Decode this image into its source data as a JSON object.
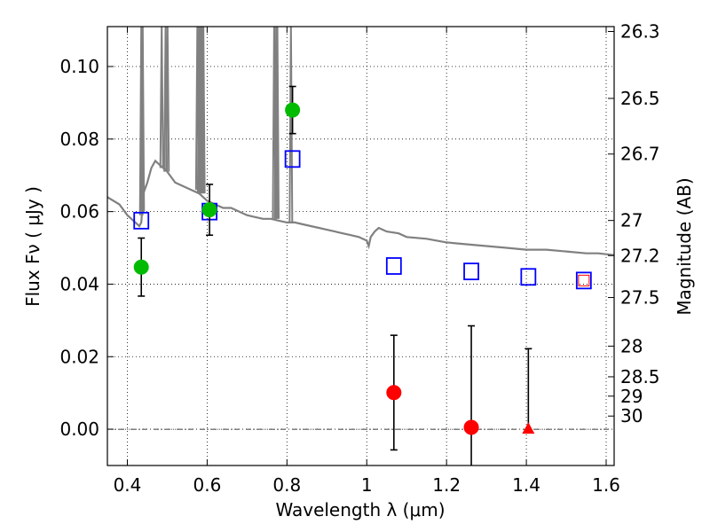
{
  "chart_data": {
    "type": "scatter",
    "xlabel": "Wavelength  λ (μm)",
    "ylabel": "Flux  Fν ( μJy )",
    "ylabel_right": "Magnitude (AB)",
    "xlim": [
      0.35,
      1.62
    ],
    "ylim": [
      -0.01,
      0.111
    ],
    "x_ticks": [
      "0.4",
      "0.6",
      "0.8",
      "1",
      "1.2",
      "1.4",
      "1.6"
    ],
    "y_ticks": [
      "0.00",
      "0.02",
      "0.04",
      "0.06",
      "0.08",
      "0.10"
    ],
    "right_ticks": [
      {
        "label": "26.3",
        "mag": 26.3
      },
      {
        "label": "26.5",
        "mag": 26.5
      },
      {
        "label": "26.7",
        "mag": 26.7
      },
      {
        "label": "27",
        "mag": 27.0
      },
      {
        "label": "27.2",
        "mag": 27.2
      },
      {
        "label": "27.5",
        "mag": 27.5
      },
      {
        "label": "28",
        "mag": 28.0
      },
      {
        "label": "28.5",
        "mag": 28.5
      },
      {
        "label": "29",
        "mag": 29.0
      },
      {
        "label": "30",
        "mag": 30.0
      }
    ],
    "grid": "dotted",
    "series": [
      {
        "kind": "model-spectrum",
        "color": "#808080",
        "points": [
          [
            0.35,
            0.064
          ],
          [
            0.38,
            0.062
          ],
          [
            0.4,
            0.059
          ],
          [
            0.42,
            0.057
          ],
          [
            0.43,
            0.056
          ],
          [
            0.435,
            0.057
          ],
          [
            0.44,
            0.065
          ],
          [
            0.45,
            0.068
          ],
          [
            0.46,
            0.072
          ],
          [
            0.47,
            0.074
          ],
          [
            0.48,
            0.073
          ],
          [
            0.5,
            0.071
          ],
          [
            0.52,
            0.068
          ],
          [
            0.54,
            0.067
          ],
          [
            0.56,
            0.066
          ],
          [
            0.58,
            0.065
          ],
          [
            0.6,
            0.063
          ],
          [
            0.62,
            0.062
          ],
          [
            0.64,
            0.061
          ],
          [
            0.66,
            0.061
          ],
          [
            0.68,
            0.06
          ],
          [
            0.7,
            0.059
          ],
          [
            0.72,
            0.0585
          ],
          [
            0.74,
            0.058
          ],
          [
            0.76,
            0.058
          ],
          [
            0.78,
            0.0575
          ],
          [
            0.8,
            0.057
          ],
          [
            0.82,
            0.057
          ],
          [
            0.84,
            0.0565
          ],
          [
            0.86,
            0.056
          ],
          [
            0.88,
            0.0555
          ],
          [
            0.9,
            0.055
          ],
          [
            0.92,
            0.0545
          ],
          [
            0.94,
            0.054
          ],
          [
            0.96,
            0.0535
          ],
          [
            0.98,
            0.053
          ],
          [
            1.0,
            0.052
          ],
          [
            1.005,
            0.0505
          ],
          [
            1.01,
            0.053
          ],
          [
            1.02,
            0.0545
          ],
          [
            1.03,
            0.0555
          ],
          [
            1.05,
            0.0545
          ],
          [
            1.08,
            0.054
          ],
          [
            1.1,
            0.053
          ],
          [
            1.15,
            0.0525
          ],
          [
            1.2,
            0.0515
          ],
          [
            1.25,
            0.051
          ],
          [
            1.3,
            0.0505
          ],
          [
            1.35,
            0.05
          ],
          [
            1.4,
            0.0495
          ],
          [
            1.45,
            0.0495
          ],
          [
            1.5,
            0.049
          ],
          [
            1.55,
            0.0485
          ],
          [
            1.58,
            0.0485
          ],
          [
            1.62,
            0.048
          ]
        ],
        "emission_lines": [
          {
            "x": 0.435,
            "base": 0.059
          },
          {
            "x": 0.4385,
            "base": 0.06
          },
          {
            "x": 0.4861,
            "base": 0.072
          },
          {
            "x": 0.4959,
            "base": 0.071
          },
          {
            "x": 0.5007,
            "base": 0.071
          },
          {
            "x": 0.5755,
            "base": 0.066
          },
          {
            "x": 0.58,
            "base": 0.065
          },
          {
            "x": 0.5835,
            "base": 0.065
          },
          {
            "x": 0.587,
            "base": 0.065
          },
          {
            "x": 0.5905,
            "base": 0.065
          },
          {
            "x": 0.768,
            "base": 0.058
          },
          {
            "x": 0.773,
            "base": 0.058
          },
          {
            "x": 0.776,
            "base": 0.058
          },
          {
            "x": 0.81,
            "base": 0.057
          }
        ]
      },
      {
        "kind": "model-photometry",
        "marker": "open-square",
        "color": "#0000ff",
        "x": [
          0.435,
          0.606,
          0.814,
          1.068,
          1.262,
          1.405,
          1.544
        ],
        "y": [
          0.0575,
          0.06,
          0.0745,
          0.045,
          0.0435,
          0.042,
          0.041
        ]
      },
      {
        "kind": "detection",
        "marker": "circle",
        "color": "#00bb00",
        "x": [
          0.435,
          0.606,
          0.814
        ],
        "y": [
          0.0447,
          0.0605,
          0.088
        ],
        "err": [
          0.008,
          0.007,
          0.0065
        ]
      },
      {
        "kind": "non-detection",
        "marker": "circle",
        "color": "#ff0000",
        "x": [
          1.068,
          1.262
        ],
        "y": [
          0.0101,
          0.0005
        ],
        "err": [
          0.0158,
          0.028
        ]
      },
      {
        "kind": "upper-limit",
        "marker": "triangle",
        "color": "#ff0000",
        "x": [
          1.405
        ],
        "y": [
          0.0
        ],
        "err_up": [
          0.0222
        ]
      },
      {
        "kind": "small-square",
        "marker": "open-square-small",
        "color": "#ff0000",
        "x": [
          1.544
        ],
        "y": [
          0.041
        ]
      }
    ]
  }
}
